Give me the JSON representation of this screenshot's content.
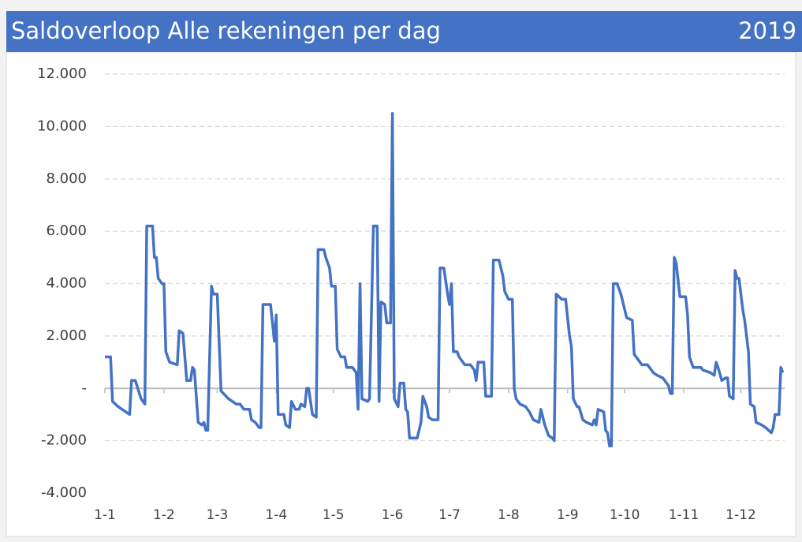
{
  "chart_data": {
    "type": "line",
    "title": "Saldoverloop Alle rekeningen per dag",
    "header_right": "2019",
    "color": "#4472c4",
    "negative_tick_color": "#ff0000",
    "grid": true,
    "xlim": [
      1,
      358
    ],
    "xticks": [
      {
        "value": 1,
        "label": "1-1"
      },
      {
        "value": 32,
        "label": "1-2"
      },
      {
        "value": 60,
        "label": "1-3"
      },
      {
        "value": 91,
        "label": "1-4"
      },
      {
        "value": 121,
        "label": "1-5"
      },
      {
        "value": 152,
        "label": "1-6"
      },
      {
        "value": 182,
        "label": "1-7"
      },
      {
        "value": 213,
        "label": "1-8"
      },
      {
        "value": 244,
        "label": "1-9"
      },
      {
        "value": 274,
        "label": "1-10"
      },
      {
        "value": 305,
        "label": "1-11"
      },
      {
        "value": 335,
        "label": "1-12"
      }
    ],
    "ylim": [
      -4000,
      12000
    ],
    "yticks": [
      {
        "value": -4000,
        "label": "-4.000"
      },
      {
        "value": -2000,
        "label": "-2.000"
      },
      {
        "value": 0,
        "label": "-"
      },
      {
        "value": 2000,
        "label": "2.000"
      },
      {
        "value": 4000,
        "label": "4.000"
      },
      {
        "value": 6000,
        "label": "6.000"
      },
      {
        "value": 8000,
        "label": "8.000"
      },
      {
        "value": 10000,
        "label": "10.000"
      },
      {
        "value": 12000,
        "label": "12.000"
      }
    ],
    "x": [
      1,
      4,
      5,
      8,
      10,
      12,
      14,
      15,
      17,
      20,
      21,
      22,
      23,
      26,
      27,
      28,
      29,
      31,
      32,
      33,
      35,
      39,
      40,
      42,
      44,
      46,
      47,
      48,
      50,
      52,
      53,
      54,
      55,
      57,
      58,
      60,
      62,
      66,
      70,
      72,
      74,
      77,
      78,
      80,
      82,
      83,
      84,
      88,
      90,
      91,
      92,
      95,
      96,
      98,
      99,
      101,
      103,
      104,
      106,
      107,
      108,
      110,
      112,
      113,
      116,
      117,
      119,
      120,
      122,
      123,
      125,
      127,
      128,
      131,
      133,
      134,
      135,
      136,
      139,
      140,
      142,
      144,
      145,
      146,
      148,
      149,
      151,
      152,
      153,
      155,
      156,
      158,
      159,
      160,
      161,
      165,
      167,
      168,
      170,
      171,
      173,
      176,
      177,
      179,
      181,
      182,
      183,
      184,
      186,
      187,
      190,
      193,
      195,
      196,
      197,
      200,
      201,
      204,
      205,
      208,
      210,
      211,
      213,
      215,
      216,
      217,
      219,
      222,
      224,
      226,
      229,
      230,
      232,
      234,
      236,
      237,
      238,
      241,
      243,
      245,
      246,
      247,
      249,
      250,
      252,
      254,
      257,
      258,
      259,
      260,
      263,
      264,
      265,
      266,
      267,
      268,
      270,
      272,
      273,
      275,
      278,
      279,
      281,
      283,
      286,
      289,
      291,
      294,
      297,
      298,
      299,
      300,
      301,
      303,
      306,
      307,
      308,
      310,
      314,
      315,
      319,
      321,
      322,
      323,
      325,
      327,
      328,
      329,
      331,
      332,
      333,
      334,
      336,
      337,
      339,
      340,
      342,
      343,
      346,
      348,
      351,
      352,
      353,
      355,
      356,
      357
    ],
    "values": [
      1200,
      1200,
      -500,
      -700,
      -800,
      -900,
      -1000,
      300,
      300,
      -400,
      -500,
      -600,
      6200,
      6200,
      5000,
      5000,
      4200,
      4000,
      4000,
      1400,
      1000,
      900,
      2200,
      2100,
      300,
      300,
      800,
      700,
      -1300,
      -1400,
      -1300,
      -1600,
      -1600,
      3900,
      3600,
      3600,
      -100,
      -400,
      -600,
      -600,
      -800,
      -800,
      -1200,
      -1300,
      -1500,
      -1500,
      3200,
      3200,
      1800,
      2800,
      -1000,
      -1000,
      -1400,
      -1500,
      -500,
      -800,
      -800,
      -600,
      -700,
      0,
      0,
      -1000,
      -1100,
      5300,
      5300,
      5000,
      4600,
      3900,
      3900,
      1500,
      1200,
      1200,
      800,
      800,
      600,
      -800,
      4000,
      -400,
      -500,
      -400,
      6200,
      6200,
      -500,
      3300,
      3200,
      2500,
      2500,
      10500,
      -400,
      -700,
      200,
      200,
      -800,
      -900,
      -1900,
      -1900,
      -1300,
      -300,
      -700,
      -1100,
      -1200,
      -1200,
      4600,
      4600,
      3600,
      3200,
      4000,
      1400,
      1400,
      1200,
      900,
      900,
      700,
      300,
      1000,
      1000,
      -300,
      -300,
      4900,
      4900,
      4300,
      3700,
      3400,
      3400,
      0,
      -400,
      -600,
      -700,
      -900,
      -1200,
      -1300,
      -800,
      -1400,
      -1800,
      -1900,
      -2000,
      3600,
      3400,
      3400,
      2000,
      1600,
      -400,
      -700,
      -700,
      -1200,
      -1300,
      -1400,
      -1200,
      -1400,
      -800,
      -900,
      -1600,
      -1700,
      -2200,
      -2200,
      4000,
      4000,
      3600,
      3300,
      2700,
      2600,
      1300,
      1100,
      900,
      900,
      600,
      500,
      400,
      100,
      -200,
      -200,
      5000,
      4800,
      3500,
      3500,
      2800,
      1200,
      800,
      800,
      700,
      600,
      500,
      1000,
      800,
      300,
      400,
      400,
      -300,
      -400,
      4500,
      4200,
      4200,
      3000,
      2600,
      1400,
      -600,
      -700,
      -1300,
      -1400,
      -1500,
      -1700,
      -1500,
      -1000,
      -1000,
      800,
      600
    ]
  }
}
